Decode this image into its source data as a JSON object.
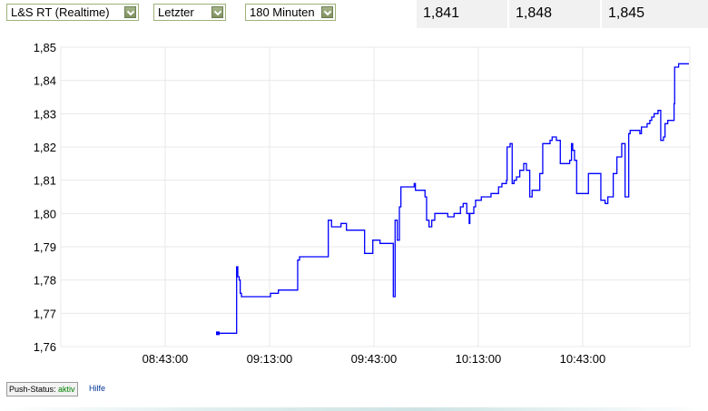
{
  "controls": {
    "exchange": "L&S RT (Realtime)",
    "price_type": "Letzter",
    "period": "180 Minuten"
  },
  "quotes": [
    "1,841",
    "1,848",
    "1,845"
  ],
  "footer": {
    "push_label": "Push-Status:",
    "push_status": "aktiv",
    "help": "Hilfe"
  },
  "colors": {
    "line": "#0000ff",
    "grid": "#e8e8e8",
    "status": "#008000",
    "link": "#003399"
  },
  "chart_data": {
    "type": "line",
    "step": true,
    "title": "",
    "xlabel": "",
    "ylabel": "",
    "grid": true,
    "xlim": [
      "08:13:00",
      "11:13:48"
    ],
    "ylim": [
      1.76,
      1.85
    ],
    "x_ticks": [
      "08:43:00",
      "09:13:00",
      "09:43:00",
      "10:13:00",
      "10:43:00"
    ],
    "y_ticks": [
      "1,76",
      "1,77",
      "1,78",
      "1,79",
      "1,80",
      "1,81",
      "1,82",
      "1,83",
      "1,84",
      "1,85"
    ],
    "series": [
      {
        "points": [
          [
            "08:58:08",
            1.764
          ],
          [
            "09:03:32",
            1.784
          ],
          [
            "09:03:52",
            1.781
          ],
          [
            "09:04:16",
            1.78
          ],
          [
            "09:04:34",
            1.776
          ],
          [
            "09:04:55",
            1.775
          ],
          [
            "09:13:16",
            1.776
          ],
          [
            "09:15:32",
            1.777
          ],
          [
            "09:21:05",
            1.786
          ],
          [
            "09:21:37",
            1.787
          ],
          [
            "09:29:53",
            1.798
          ],
          [
            "09:30:49",
            1.796
          ],
          [
            "09:33:32",
            1.797
          ],
          [
            "09:35:06",
            1.795
          ],
          [
            "09:40:19",
            1.788
          ],
          [
            "09:42:40",
            1.792
          ],
          [
            "09:44:45",
            1.791
          ],
          [
            "09:48:34",
            1.775
          ],
          [
            "09:49:05",
            1.798
          ],
          [
            "09:49:43",
            1.792
          ],
          [
            "09:50:19",
            1.802
          ],
          [
            "09:50:45",
            1.808
          ],
          [
            "09:54:34",
            1.809
          ],
          [
            "09:54:55",
            1.807
          ],
          [
            "09:57:41",
            1.805
          ],
          [
            "09:58:08",
            1.798
          ],
          [
            "09:58:50",
            1.796
          ],
          [
            "09:59:37",
            1.798
          ],
          [
            "10:00:29",
            1.8
          ],
          [
            "10:04:13",
            1.799
          ],
          [
            "10:06:02",
            1.8
          ],
          [
            "10:07:52",
            1.802
          ],
          [
            "10:08:39",
            1.803
          ],
          [
            "10:09:41",
            1.8
          ],
          [
            "10:10:23",
            1.797
          ],
          [
            "10:10:34",
            1.8
          ],
          [
            "10:11:42",
            1.802
          ],
          [
            "10:12:13",
            1.804
          ],
          [
            "10:13:52",
            1.805
          ],
          [
            "10:16:39",
            1.806
          ],
          [
            "10:18:49",
            1.808
          ],
          [
            "10:19:47",
            1.809
          ],
          [
            "10:21:05",
            1.81
          ],
          [
            "10:21:16",
            1.82
          ],
          [
            "10:22:08",
            1.821
          ],
          [
            "10:22:44",
            1.809
          ],
          [
            "10:23:16",
            1.81
          ],
          [
            "10:23:58",
            1.811
          ],
          [
            "10:24:55",
            1.813
          ],
          [
            "10:26:03",
            1.815
          ],
          [
            "10:26:50",
            1.813
          ],
          [
            "10:27:47",
            1.805
          ],
          [
            "10:28:28",
            1.807
          ],
          [
            "10:30:40",
            1.812
          ],
          [
            "10:31:31",
            1.821
          ],
          [
            "10:33:37",
            1.822
          ],
          [
            "10:34:13",
            1.823
          ],
          [
            "10:35:26",
            1.822
          ],
          [
            "10:36:34",
            1.815
          ],
          [
            "10:39:16",
            1.816
          ],
          [
            "10:39:47",
            1.821
          ],
          [
            "10:40:08",
            1.819
          ],
          [
            "10:40:39",
            1.816
          ],
          [
            "10:41:16",
            1.806
          ],
          [
            "10:44:39",
            1.812
          ],
          [
            "10:48:13",
            1.804
          ],
          [
            "10:49:27",
            1.803
          ],
          [
            "10:50:14",
            1.805
          ],
          [
            "10:51:47",
            1.812
          ],
          [
            "10:52:50",
            1.817
          ],
          [
            "10:54:13",
            1.821
          ],
          [
            "10:55:11",
            1.805
          ],
          [
            "10:56:14",
            1.824
          ],
          [
            "10:56:39",
            1.825
          ],
          [
            "10:59:26",
            1.824
          ],
          [
            "10:59:53",
            1.826
          ],
          [
            "11:01:31",
            1.827
          ],
          [
            "11:02:18",
            1.828
          ],
          [
            "11:02:50",
            1.829
          ],
          [
            "11:03:32",
            1.83
          ],
          [
            "11:04:39",
            1.831
          ],
          [
            "11:05:26",
            1.822
          ],
          [
            "11:06:13",
            1.823
          ],
          [
            "11:06:40",
            1.827
          ],
          [
            "11:07:27",
            1.828
          ],
          [
            "11:09:16",
            1.833
          ],
          [
            "11:09:26",
            1.844
          ],
          [
            "11:10:34",
            1.845
          ],
          [
            "11:13:31",
            1.845
          ]
        ]
      }
    ]
  }
}
